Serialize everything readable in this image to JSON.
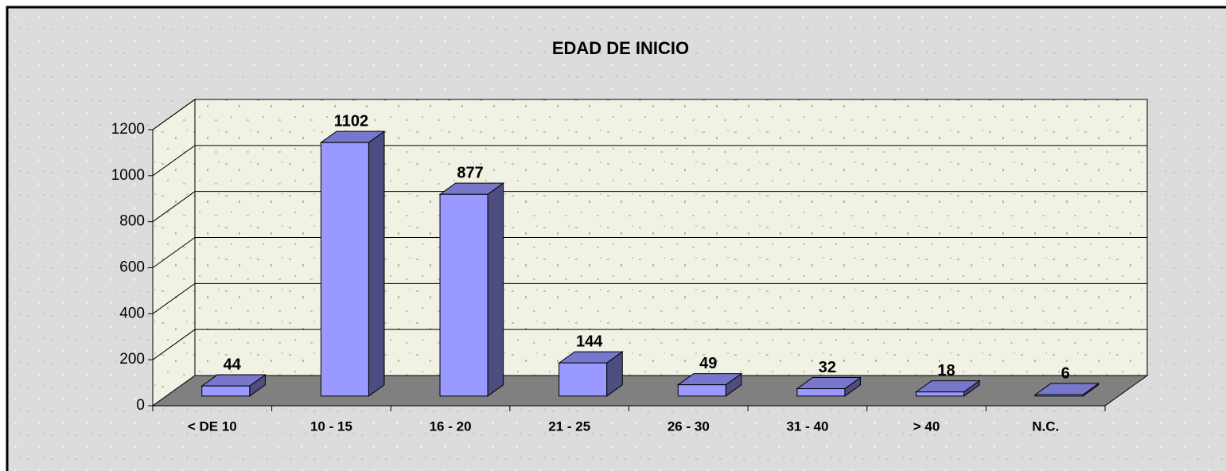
{
  "chart_data": {
    "type": "bar3d",
    "title": "EDAD DE INICIO",
    "categories": [
      "< DE 10",
      "10 - 15",
      "16 - 20",
      "21 - 25",
      "26 - 30",
      "31 - 40",
      "> 40",
      "N.C."
    ],
    "values": [
      44,
      1102,
      877,
      144,
      49,
      32,
      18,
      6
    ],
    "color": "#9999ff",
    "ylim": [
      0,
      1200
    ],
    "yticks": [
      0,
      200,
      400,
      600,
      800,
      1000,
      1200
    ],
    "grid": true
  }
}
